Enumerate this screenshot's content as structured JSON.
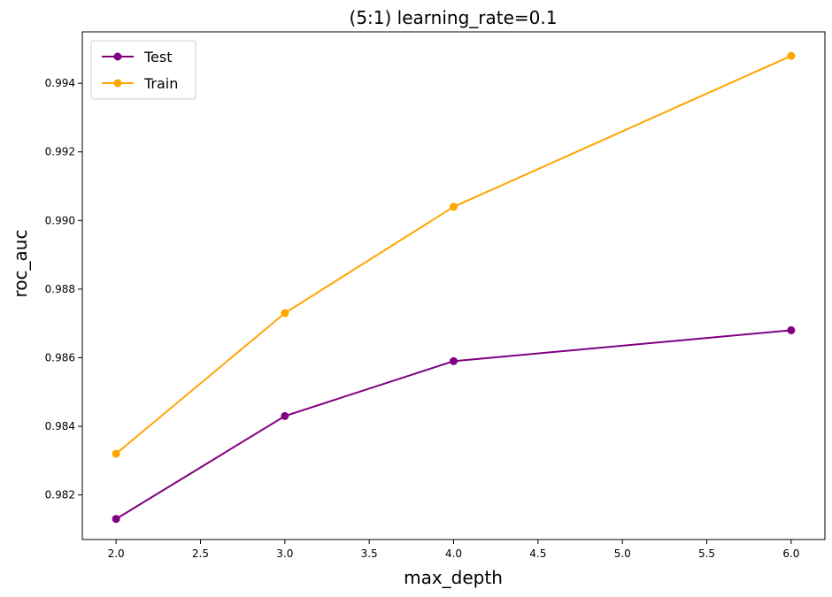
{
  "chart_data": {
    "type": "line",
    "title": "(5:1) learning_rate=0.1",
    "xlabel": "max_depth",
    "ylabel": "roc_auc",
    "x": [
      2.0,
      3.0,
      4.0,
      6.0
    ],
    "xlim": [
      1.8,
      6.2
    ],
    "ylim": [
      0.9807,
      0.9955
    ],
    "xticks": [
      2.0,
      2.5,
      3.0,
      3.5,
      4.0,
      4.5,
      5.0,
      5.5,
      6.0
    ],
    "xtick_labels": [
      "2.0",
      "2.5",
      "3.0",
      "3.5",
      "4.0",
      "4.5",
      "5.0",
      "5.5",
      "6.0"
    ],
    "yticks": [
      0.982,
      0.984,
      0.986,
      0.988,
      0.99,
      0.992,
      0.994
    ],
    "ytick_labels": [
      "0.982",
      "0.984",
      "0.986",
      "0.988",
      "0.990",
      "0.992",
      "0.994"
    ],
    "grid": false,
    "legend_position": "top-left",
    "series": [
      {
        "name": "Test",
        "color": "#800080",
        "marker": "circle",
        "values": [
          0.9813,
          0.9843,
          0.9859,
          0.9868
        ]
      },
      {
        "name": "Train",
        "color": "#FFA500",
        "marker": "circle",
        "values": [
          0.9832,
          0.9873,
          0.9904,
          0.9948
        ]
      }
    ]
  }
}
